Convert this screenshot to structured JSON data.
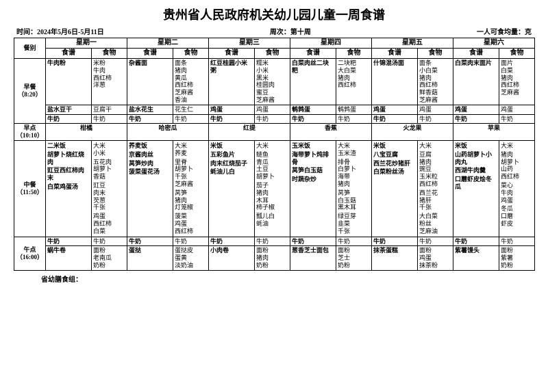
{
  "title": "贵州省人民政府机关幼儿园儿童一周食谱",
  "info": {
    "time_label": "时间：",
    "time_value": "2024年5月6日-5月11日",
    "week_label": "周次：",
    "week_value": "第十周",
    "portion": "一人可食均量：克"
  },
  "headers": {
    "meal": "餐别",
    "days": [
      "星期一",
      "星期二",
      "星期三",
      "星期四",
      "星期五",
      "星期六"
    ],
    "recipe": "食谱",
    "food": "食物"
  },
  "meals": {
    "breakfast": {
      "label": "早餐",
      "time": "（8:20）"
    },
    "morning_snack": {
      "label": "早点",
      "time": "（10:10）"
    },
    "lunch": {
      "label": "中餐",
      "time": "（11:50）"
    },
    "afternoon_snack": {
      "label": "午点",
      "time": "（16:00）"
    }
  },
  "breakfast": [
    {
      "r1": "牛肉粉",
      "f1": "米粉\n牛肉\n西红柿\n洋葱",
      "r2": "盐水豆干",
      "f2": "豆腐干",
      "r3": "牛奶",
      "f3": "牛奶"
    },
    {
      "r1": "杂酱面",
      "f1": "面条\n猪肉\n黄瓜\n西红柿\n芝麻酱\n香油",
      "r2": "盐水花生",
      "f2": "花生仁",
      "r3": "牛奶",
      "f3": "牛奶"
    },
    {
      "r1": "红豆桂圆小米粥",
      "f1": "糯米\n小米\n黑米\n桂圆肉\n蜜豆\n芝麻酱",
      "r2": "鸡蛋",
      "f2": "鸡蛋",
      "r3": "牛奶",
      "f3": "牛奶"
    },
    {
      "r1": "白菜肉丝二块粑",
      "f1": "二块粑\n大白菜\n猪肉\n西红柿",
      "r2": "鹌鹑蛋",
      "f2": "鹌鹑蛋",
      "r3": "牛奶",
      "f3": "牛奶"
    },
    {
      "r1": "什锦混汤面",
      "f1": "面条\n小白菜\n猪肉\n西红柿\n鲜香菇\n芝麻酱",
      "r2": "鸡蛋",
      "f2": "鸡蛋",
      "r3": "牛奶",
      "f3": "牛奶"
    },
    {
      "r1": "白菜肉末面片",
      "f1": "面片\n白菜\n猪肉\n西红柿\n芝麻酱",
      "r2": "鸡蛋",
      "f2": "鸡蛋",
      "r3": "牛奶",
      "f3": "牛奶"
    }
  ],
  "morning_snack": [
    "柑橘",
    "哈密瓜",
    "红提",
    "香蕉",
    "火龙果",
    "苹果"
  ],
  "lunch": [
    {
      "rows": [
        {
          "r": "二米饭",
          "f": "大米\n小米"
        },
        {
          "r": "胡萝卜烧红烧肉",
          "f": "五花肉\n胡萝卜\n香菇"
        },
        {
          "r": "豇豆西红柿肉末",
          "f": "豇豆\n肉末\n芡葱\n千张"
        },
        {
          "r": "白菜鸡蛋汤",
          "f": "鸡蛋\n西红柿\n白菜"
        }
      ]
    },
    {
      "rows": [
        {
          "r": "荞麦饭",
          "f": "大米\n荞麦"
        },
        {
          "r": "京酱肉丝",
          "f": "里脊\n胡萝卜\n千张\n芝麻酱"
        },
        {
          "r": "莴笋炒肉",
          "f": "莴笋\n猪肉\n灯笼椒"
        },
        {
          "r": "菠菜蛋花汤",
          "f": "菠菜\n鸡蛋\n西红柿"
        }
      ]
    },
    {
      "rows": [
        {
          "r": "米饭",
          "f": "大米"
        },
        {
          "r": "五彩鱼片",
          "f": "鲢鱼\n青瓜\n土豆\n胡萝卜"
        },
        {
          "r": "肉末红烧茄子",
          "f": "茄子\n猪肉\n木耳\n柿子椒"
        },
        {
          "r": "蚝油儿白",
          "f": "瓢儿白\n蚝油"
        }
      ]
    },
    {
      "rows": [
        {
          "r": "玉米饭",
          "f": "大米\n玉米渣"
        },
        {
          "r": "海带萝卜炖排骨",
          "f": "排骨\n白萝卜\n海带\n猪肉"
        },
        {
          "r": "莴笋白玉菇",
          "f": "莴笋\n白玉菇\n黑木耳"
        },
        {
          "r": "时蔬杂炒",
          "f": "绿豆芽\n韭菜\n千张"
        }
      ]
    },
    {
      "rows": [
        {
          "r": "米饭",
          "f": "大米"
        },
        {
          "r": "八宝豆腐",
          "f": "豆腐\n猪肉\n豌豆\n玉米粒\n西红柿"
        },
        {
          "r": "西兰花炒猪肝",
          "f": "西兰花\n猪肝\n千张"
        },
        {
          "r": "白菜粉丝汤",
          "f": "大白菜\n粉丝\n芝麻油"
        }
      ]
    },
    {
      "rows": [
        {
          "r": "米饭",
          "f": "大米"
        },
        {
          "r": "山药胡萝卜小肉丸",
          "f": "猪肉\n胡萝卜\n山药\n西红柿"
        },
        {
          "r": "西湖牛肉羹",
          "f": "菜心\n牛肉\n鸡蛋"
        },
        {
          "r": "口蘑虾皮烩冬瓜",
          "f": "冬瓜\n口蘑\n虾皮"
        }
      ]
    }
  ],
  "afternoon_snack": [
    {
      "r1": "牛奶",
      "f1": "牛奶",
      "r2": "蜗牛卷",
      "f2": "面粉\n老南瓜\n奶粉"
    },
    {
      "r1": "牛奶",
      "f1": "牛奶",
      "r2": "蛋挞",
      "f2": "蛋挞皮\n蛋黄\n淡奶油"
    },
    {
      "r1": "牛奶",
      "f1": "牛奶",
      "r2": "小肉卷",
      "f2": "面粉\n猪肉\n奶粉"
    },
    {
      "r1": "牛奶",
      "f1": "牛奶",
      "r2": "葱香芝士面包",
      "f2": "面粉\n芝士\n奶粉"
    },
    {
      "r1": "牛奶",
      "f1": "牛奶",
      "r2": "抹茶蛋糕",
      "f2": "面粉\n鸡蛋\n抹茶粉"
    },
    {
      "r1": "牛奶",
      "f1": "牛奶",
      "r2": "紫薯馒头",
      "f2": "面粉\n紫薯\n奶粉"
    }
  ],
  "footer": "省幼膳食组："
}
